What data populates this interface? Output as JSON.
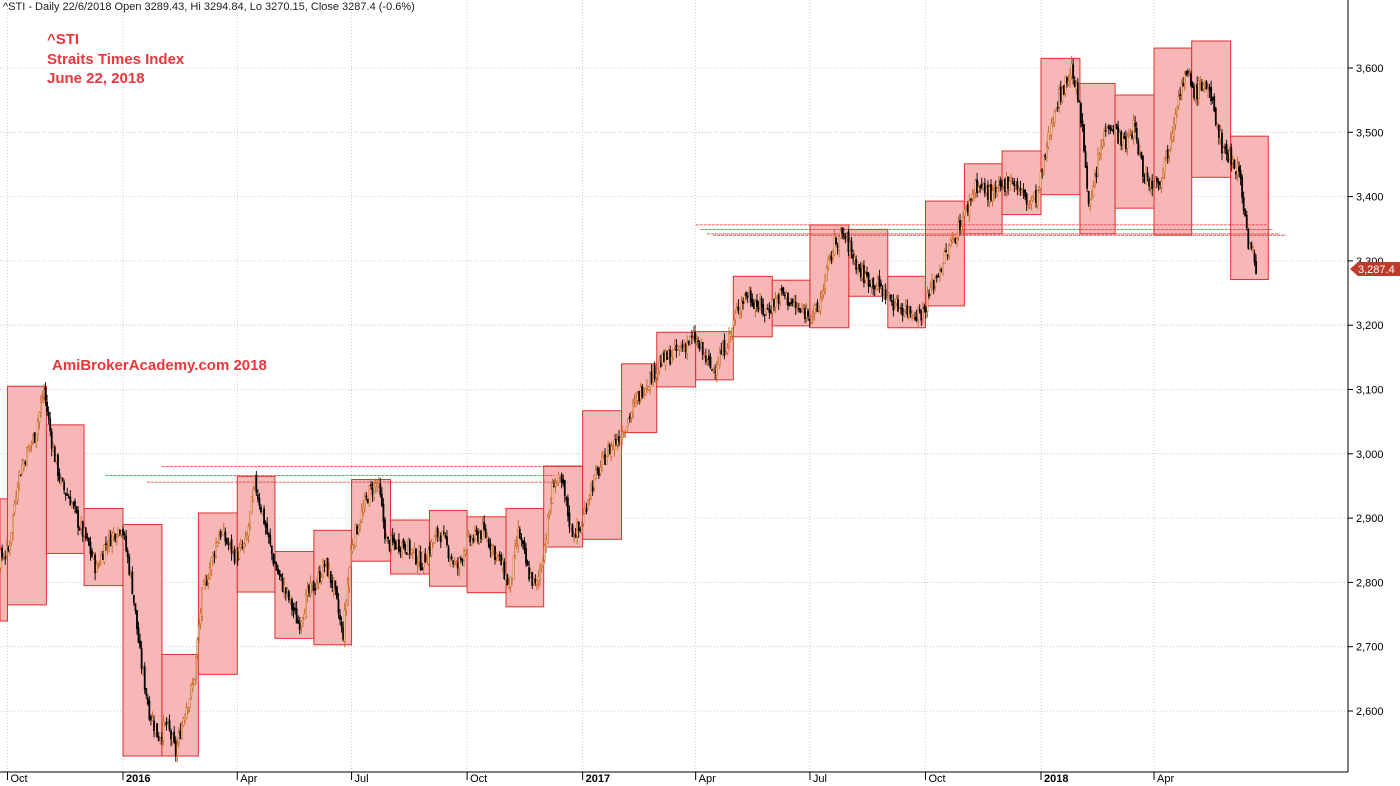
{
  "header": {
    "text": "^STI - Daily 22/6/2018 Open 3289.43, Hi 3294.84, Lo 3270.15, Close 3287.4 (-0.6%)"
  },
  "annotations": {
    "ticker": "^STI",
    "name": "Straits Times Index",
    "date": "June 22, 2018",
    "watermark": "AmiBrokerAcademy.com  2018"
  },
  "colors": {
    "box_fill": "#f7b7b7",
    "box_stroke": "#e03030",
    "annotation_red": "#e8383c",
    "candle": "#000000",
    "candle_up": "#c8641e",
    "grid": "#bfbfbf",
    "price_tag": "#c0392b"
  },
  "chart_data": {
    "type": "candlestick",
    "title": "",
    "xlabel": "",
    "ylabel": "",
    "y_scale": "linear",
    "ylim": [
      2520,
      3660
    ],
    "grid": true,
    "y_ticks": [
      2600,
      2700,
      2800,
      2900,
      3000,
      3100,
      3200,
      3300,
      3400,
      3500,
      3600
    ],
    "y_tick_labels": [
      "2,600",
      "2,700",
      "2,800",
      "2,900",
      "3,000",
      "3,100",
      "3,200",
      "3,300",
      "3,400",
      "3,500",
      "3,600"
    ],
    "x_ticks": [
      {
        "label": "Oct",
        "date": "2015-10-01",
        "bold": false
      },
      {
        "label": "2016",
        "date": "2016-01-01",
        "bold": true
      },
      {
        "label": "Apr",
        "date": "2016-04-01",
        "bold": false
      },
      {
        "label": "Jul",
        "date": "2016-07-01",
        "bold": false
      },
      {
        "label": "Oct",
        "date": "2016-10-01",
        "bold": false
      },
      {
        "label": "2017",
        "date": "2017-01-01",
        "bold": true
      },
      {
        "label": "Apr",
        "date": "2017-04-01",
        "bold": false
      },
      {
        "label": "Jul",
        "date": "2017-07-01",
        "bold": false
      },
      {
        "label": "Oct",
        "date": "2017-10-01",
        "bold": false
      },
      {
        "label": "2018",
        "date": "2018-01-01",
        "bold": true
      },
      {
        "label": "Apr",
        "date": "2018-04-01",
        "bold": false
      }
    ],
    "last_close": 3287.4,
    "last_close_label": "3,287.4",
    "monthly_boxes": [
      {
        "month": "2015-09",
        "high": 2930,
        "low": 2740
      },
      {
        "month": "2015-10",
        "high": 3105,
        "low": 2765
      },
      {
        "month": "2015-11",
        "high": 3045,
        "low": 2845
      },
      {
        "month": "2015-12",
        "high": 2915,
        "low": 2795
      },
      {
        "month": "2016-01",
        "high": 2890,
        "low": 2530
      },
      {
        "month": "2016-02",
        "high": 2688,
        "low": 2530
      },
      {
        "month": "2016-03",
        "high": 2908,
        "low": 2657
      },
      {
        "month": "2016-04",
        "high": 2965,
        "low": 2785
      },
      {
        "month": "2016-05",
        "high": 2848,
        "low": 2713
      },
      {
        "month": "2016-06",
        "high": 2881,
        "low": 2703
      },
      {
        "month": "2016-07",
        "high": 2960,
        "low": 2833
      },
      {
        "month": "2016-08",
        "high": 2897,
        "low": 2813
      },
      {
        "month": "2016-09",
        "high": 2912,
        "low": 2794
      },
      {
        "month": "2016-10",
        "high": 2902,
        "low": 2784
      },
      {
        "month": "2016-11",
        "high": 2915,
        "low": 2762
      },
      {
        "month": "2016-12",
        "high": 2981,
        "low": 2855
      },
      {
        "month": "2017-01",
        "high": 3067,
        "low": 2867
      },
      {
        "month": "2017-02",
        "high": 3140,
        "low": 3033
      },
      {
        "month": "2017-03",
        "high": 3189,
        "low": 3104
      },
      {
        "month": "2017-04",
        "high": 3190,
        "low": 3115
      },
      {
        "month": "2017-05",
        "high": 3276,
        "low": 3182
      },
      {
        "month": "2017-06",
        "high": 3270,
        "low": 3199
      },
      {
        "month": "2017-07",
        "high": 3356,
        "low": 3196
      },
      {
        "month": "2017-08",
        "high": 3349,
        "low": 3245
      },
      {
        "month": "2017-09",
        "high": 3276,
        "low": 3196
      },
      {
        "month": "2017-10",
        "high": 3393,
        "low": 3230
      },
      {
        "month": "2017-11",
        "high": 3451,
        "low": 3342
      },
      {
        "month": "2017-12",
        "high": 3471,
        "low": 3372
      },
      {
        "month": "2018-01",
        "high": 3615,
        "low": 3403
      },
      {
        "month": "2018-02",
        "high": 3576,
        "low": 3342
      },
      {
        "month": "2018-03",
        "high": 3558,
        "low": 3382
      },
      {
        "month": "2018-04",
        "high": 3631,
        "low": 3340
      },
      {
        "month": "2018-05",
        "high": 3642,
        "low": 3430
      },
      {
        "month": "2018-06",
        "high": 3494,
        "low": 3271
      }
    ],
    "price_path": [
      [
        "2015-09-07",
        2790
      ],
      [
        "2015-09-21",
        2830
      ],
      [
        "2015-10-02",
        2850
      ],
      [
        "2015-10-09",
        2960
      ],
      [
        "2015-10-16",
        3000
      ],
      [
        "2015-10-23",
        3030
      ],
      [
        "2015-10-30",
        3100
      ],
      [
        "2015-11-06",
        3010
      ],
      [
        "2015-11-13",
        2950
      ],
      [
        "2015-11-20",
        2930
      ],
      [
        "2015-11-27",
        2890
      ],
      [
        "2015-12-04",
        2860
      ],
      [
        "2015-12-11",
        2820
      ],
      [
        "2015-12-18",
        2860
      ],
      [
        "2015-12-31",
        2890
      ],
      [
        "2016-01-08",
        2800
      ],
      [
        "2016-01-15",
        2680
      ],
      [
        "2016-01-22",
        2600
      ],
      [
        "2016-01-29",
        2560
      ],
      [
        "2016-02-05",
        2580
      ],
      [
        "2016-02-12",
        2535
      ],
      [
        "2016-02-19",
        2600
      ],
      [
        "2016-02-26",
        2640
      ],
      [
        "2016-03-04",
        2780
      ],
      [
        "2016-03-11",
        2830
      ],
      [
        "2016-03-18",
        2880
      ],
      [
        "2016-03-31",
        2840
      ],
      [
        "2016-04-08",
        2860
      ],
      [
        "2016-04-15",
        2955
      ],
      [
        "2016-04-22",
        2900
      ],
      [
        "2016-04-29",
        2840
      ],
      [
        "2016-05-06",
        2800
      ],
      [
        "2016-05-13",
        2770
      ],
      [
        "2016-05-20",
        2735
      ],
      [
        "2016-05-27",
        2780
      ],
      [
        "2016-06-03",
        2800
      ],
      [
        "2016-06-10",
        2830
      ],
      [
        "2016-06-17",
        2790
      ],
      [
        "2016-06-24",
        2715
      ],
      [
        "2016-07-01",
        2860
      ],
      [
        "2016-07-08",
        2900
      ],
      [
        "2016-07-15",
        2940
      ],
      [
        "2016-07-22",
        2955
      ],
      [
        "2016-07-29",
        2860
      ],
      [
        "2016-08-12",
        2860
      ],
      [
        "2016-08-26",
        2830
      ],
      [
        "2016-09-09",
        2880
      ],
      [
        "2016-09-23",
        2820
      ],
      [
        "2016-09-30",
        2860
      ],
      [
        "2016-10-07",
        2870
      ],
      [
        "2016-10-14",
        2880
      ],
      [
        "2016-10-28",
        2830
      ],
      [
        "2016-11-04",
        2790
      ],
      [
        "2016-11-11",
        2880
      ],
      [
        "2016-11-18",
        2820
      ],
      [
        "2016-11-25",
        2790
      ],
      [
        "2016-12-02",
        2860
      ],
      [
        "2016-12-09",
        2960
      ],
      [
        "2016-12-16",
        2950
      ],
      [
        "2016-12-23",
        2880
      ],
      [
        "2016-12-30",
        2880
      ],
      [
        "2017-01-06",
        2940
      ],
      [
        "2017-01-20",
        3000
      ],
      [
        "2017-02-03",
        3040
      ],
      [
        "2017-02-17",
        3100
      ],
      [
        "2017-03-03",
        3140
      ],
      [
        "2017-03-17",
        3160
      ],
      [
        "2017-03-31",
        3180
      ],
      [
        "2017-04-14",
        3130
      ],
      [
        "2017-04-28",
        3180
      ],
      [
        "2017-05-05",
        3230
      ],
      [
        "2017-05-12",
        3250
      ],
      [
        "2017-05-26",
        3220
      ],
      [
        "2017-06-09",
        3250
      ],
      [
        "2017-06-23",
        3220
      ],
      [
        "2017-07-07",
        3220
      ],
      [
        "2017-07-14",
        3280
      ],
      [
        "2017-07-21",
        3330
      ],
      [
        "2017-07-28",
        3340
      ],
      [
        "2017-08-11",
        3280
      ],
      [
        "2017-08-25",
        3260
      ],
      [
        "2017-09-08",
        3230
      ],
      [
        "2017-09-22",
        3220
      ],
      [
        "2017-09-29",
        3220
      ],
      [
        "2017-10-06",
        3260
      ],
      [
        "2017-10-13",
        3290
      ],
      [
        "2017-10-27",
        3350
      ],
      [
        "2017-11-03",
        3380
      ],
      [
        "2017-11-10",
        3420
      ],
      [
        "2017-11-24",
        3400
      ],
      [
        "2017-12-08",
        3430
      ],
      [
        "2017-12-22",
        3390
      ],
      [
        "2017-12-29",
        3400
      ],
      [
        "2018-01-05",
        3470
      ],
      [
        "2018-01-12",
        3540
      ],
      [
        "2018-01-19",
        3570
      ],
      [
        "2018-01-26",
        3600
      ],
      [
        "2018-02-02",
        3520
      ],
      [
        "2018-02-09",
        3380
      ],
      [
        "2018-02-16",
        3460
      ],
      [
        "2018-02-23",
        3520
      ],
      [
        "2018-03-02",
        3500
      ],
      [
        "2018-03-09",
        3480
      ],
      [
        "2018-03-16",
        3510
      ],
      [
        "2018-03-23",
        3440
      ],
      [
        "2018-03-29",
        3420
      ],
      [
        "2018-04-06",
        3430
      ],
      [
        "2018-04-13",
        3480
      ],
      [
        "2018-04-20",
        3560
      ],
      [
        "2018-04-27",
        3590
      ],
      [
        "2018-05-04",
        3560
      ],
      [
        "2018-05-11",
        3580
      ],
      [
        "2018-05-18",
        3540
      ],
      [
        "2018-05-25",
        3480
      ],
      [
        "2018-06-01",
        3460
      ],
      [
        "2018-06-08",
        3440
      ],
      [
        "2018-06-15",
        3330
      ],
      [
        "2018-06-22",
        3287
      ]
    ],
    "resistance_lines": [
      {
        "start": "2016-02-01",
        "end": "2016-12-31",
        "value": 2980
      },
      {
        "start": "2015-12-18",
        "end": "2016-12-10",
        "value": 2966
      },
      {
        "start": "2016-01-20",
        "end": "2016-12-20",
        "value": 2956
      },
      {
        "start": "2017-04-01",
        "end": "2018-06-30",
        "value": 3356
      },
      {
        "start": "2017-04-05",
        "end": "2018-07-05",
        "value": 3349
      },
      {
        "start": "2017-04-10",
        "end": "2018-07-10",
        "value": 3342
      },
      {
        "start": "2017-04-15",
        "end": "2018-07-15",
        "value": 3340
      }
    ]
  }
}
